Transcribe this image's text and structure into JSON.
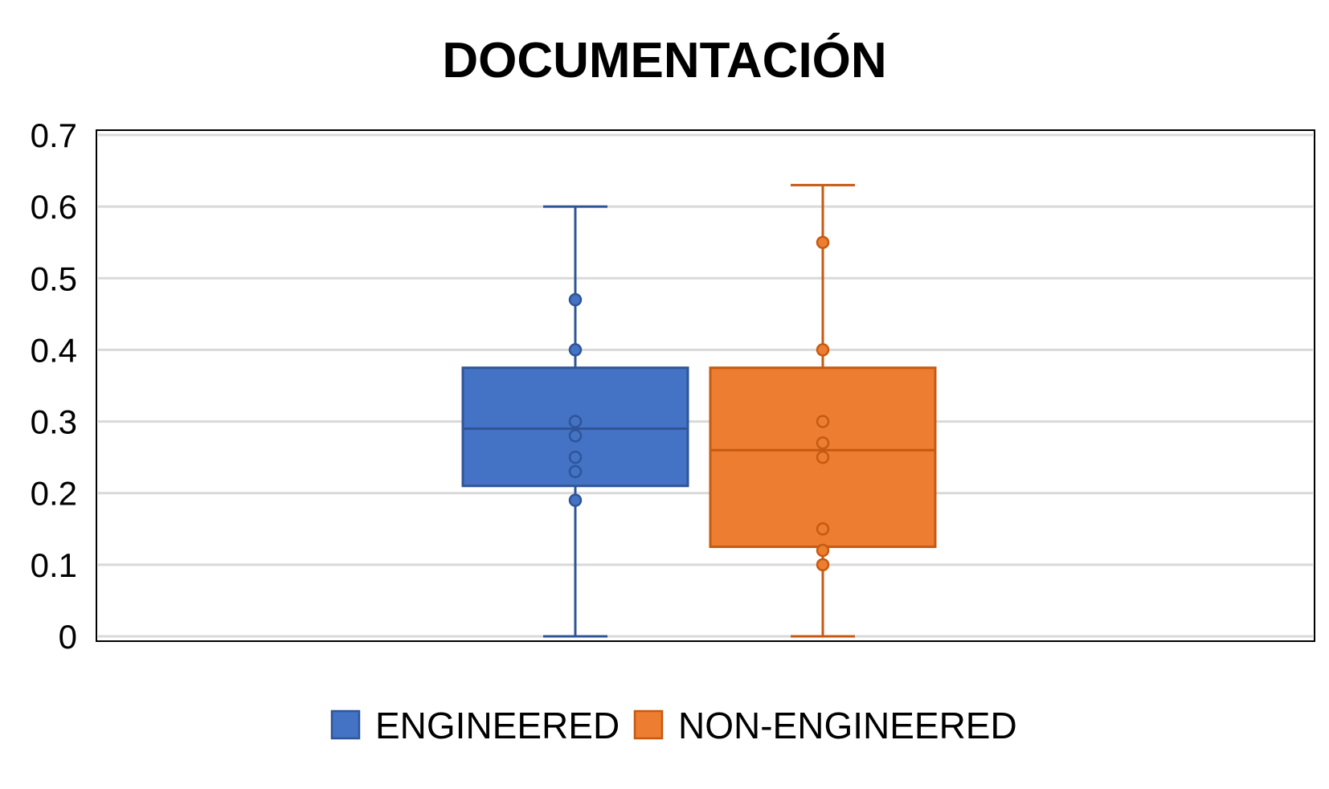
{
  "chart_data": {
    "type": "box",
    "title": "DOCUMENTACIÓN",
    "xlabel": "",
    "ylabel": "",
    "ylim": [
      0,
      0.7
    ],
    "yticks": [
      0,
      0.1,
      0.2,
      0.3,
      0.4,
      0.5,
      0.6,
      0.7
    ],
    "ytick_labels": [
      "0",
      "0.1",
      "0.2",
      "0.3",
      "0.4",
      "0.5",
      "0.6",
      "0.7"
    ],
    "grid": true,
    "legend_position": "bottom",
    "series": [
      {
        "name": "ENGINEERED",
        "color": "#4472C4",
        "edge_color": "#2F5597",
        "whisker_min": 0,
        "q1": 0.21,
        "median": 0.29,
        "q3": 0.375,
        "whisker_max": 0.6,
        "points": [
          0.47,
          0.4,
          0.3,
          0.28,
          0.25,
          0.23,
          0.19
        ]
      },
      {
        "name": "NON-ENGINEERED",
        "color": "#ED7D31",
        "edge_color": "#C55A11",
        "whisker_min": 0,
        "q1": 0.125,
        "median": 0.26,
        "q3": 0.375,
        "whisker_max": 0.63,
        "points": [
          0.55,
          0.4,
          0.3,
          0.27,
          0.25,
          0.15,
          0.12,
          0.1
        ]
      }
    ]
  }
}
